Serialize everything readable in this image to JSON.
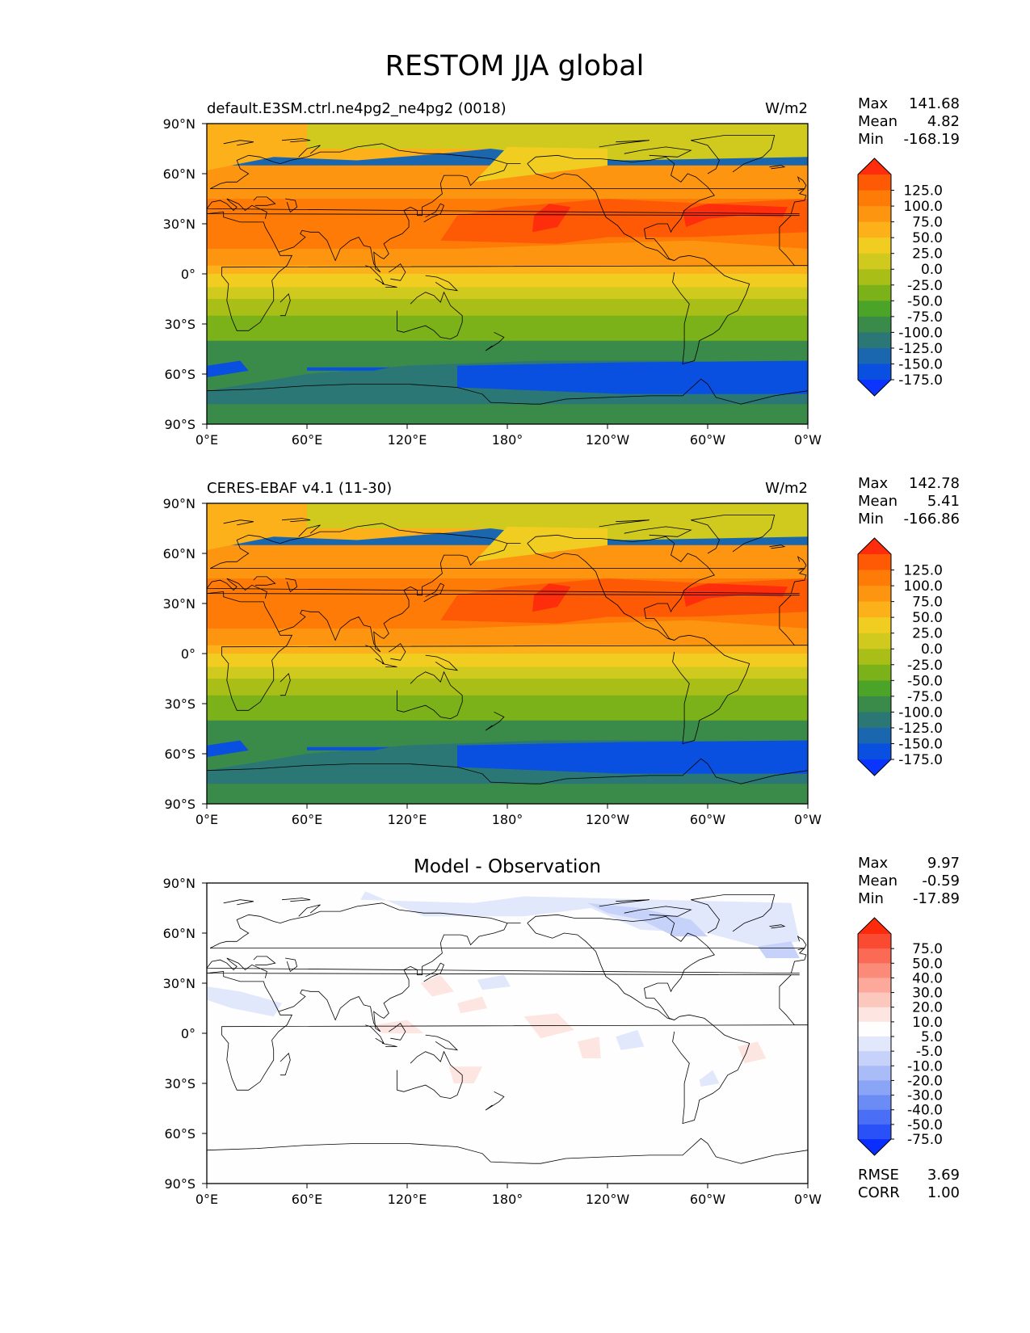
{
  "title": "RESTOM JJA global",
  "lat_ticks": [
    "90°N",
    "60°N",
    "30°N",
    "0°",
    "30°S",
    "60°S",
    "90°S"
  ],
  "lon_ticks": [
    "0°E",
    "60°E",
    "120°E",
    "180°",
    "120°W",
    "60°W",
    "0°W"
  ],
  "panels": [
    {
      "left_title": "default.E3SM.ctrl.ne4pg2_ne4pg2 (0018)",
      "center_title": "",
      "units": "W/m2",
      "stats": {
        "max_label": "Max",
        "max": "141.68",
        "mean_label": "Mean",
        "mean": "4.82",
        "min_label": "Min",
        "min": "-168.19"
      },
      "colorbar": {
        "labels": [
          "125.0",
          "100.0",
          "75.0",
          "50.0",
          "25.0",
          "0.0",
          "-25.0",
          "-50.0",
          "-75.0",
          "-100.0",
          "-125.0",
          "-150.0",
          "-175.0"
        ],
        "colors": [
          "#fe2d0c",
          "#fe5a05",
          "#fe7b07",
          "#fe9510",
          "#fcb11a",
          "#f2cd21",
          "#cfca1d",
          "#a9bf17",
          "#7bb21a",
          "#4ba428",
          "#3a8a4a",
          "#2b7775",
          "#1a67b0",
          "#0a50e0",
          "#0b34fe"
        ]
      }
    },
    {
      "left_title": "CERES-EBAF v4.1 (11-30)",
      "center_title": "",
      "units": "W/m2",
      "stats": {
        "max_label": "Max",
        "max": "142.78",
        "mean_label": "Mean",
        "mean": "5.41",
        "min_label": "Min",
        "min": "-166.86"
      },
      "colorbar": {
        "labels": [
          "125.0",
          "100.0",
          "75.0",
          "50.0",
          "25.0",
          "0.0",
          "-25.0",
          "-50.0",
          "-75.0",
          "-100.0",
          "-125.0",
          "-150.0",
          "-175.0"
        ],
        "colors": [
          "#fe2d0c",
          "#fe5a05",
          "#fe7b07",
          "#fe9510",
          "#fcb11a",
          "#f2cd21",
          "#cfca1d",
          "#a9bf17",
          "#7bb21a",
          "#4ba428",
          "#3a8a4a",
          "#2b7775",
          "#1a67b0",
          "#0a50e0",
          "#0b34fe"
        ]
      }
    },
    {
      "left_title": "",
      "center_title": "Model - Observation",
      "units": "",
      "stats": {
        "max_label": "Max",
        "max": "9.97",
        "mean_label": "Mean",
        "mean": "-0.59",
        "min_label": "Min",
        "min": "-17.89"
      },
      "extra_stats": {
        "rmse_label": "RMSE",
        "rmse": "3.69",
        "corr_label": "CORR",
        "corr": "1.00"
      },
      "colorbar": {
        "labels": [
          "75.0",
          "50.0",
          "40.0",
          "30.0",
          "20.0",
          "10.0",
          "5.0",
          "-5.0",
          "-10.0",
          "-20.0",
          "-30.0",
          "-40.0",
          "-50.0",
          "-75.0"
        ],
        "colors": [
          "#fe2a0c",
          "#fa4a32",
          "#fa6a55",
          "#fb8a78",
          "#fca99b",
          "#fcc8be",
          "#fde6e1",
          "#fefefe",
          "#e2e8fb",
          "#c6d2fa",
          "#a9bcf8",
          "#8aa4f6",
          "#6b8cf5",
          "#4a6ef5",
          "#2a50f7",
          "#0a2efe"
        ]
      }
    }
  ]
}
